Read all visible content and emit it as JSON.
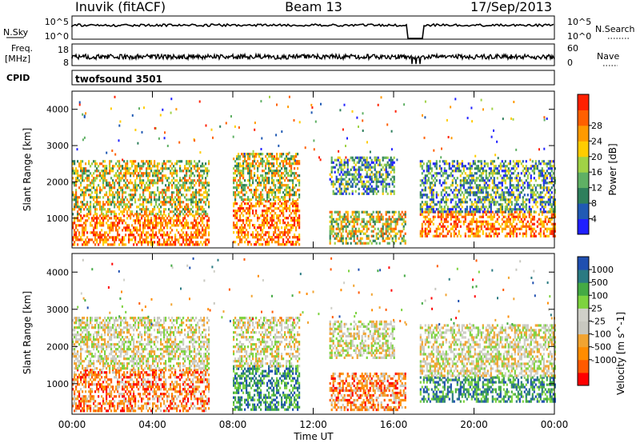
{
  "header": {
    "station": "Inuvik (fitACF)",
    "beam": "Beam 13",
    "date": "17/Sep/2013"
  },
  "housekeeping": {
    "nsky_label": "N.Sky",
    "nsky_ticks": [
      "10^5",
      "10^0"
    ],
    "nsearch_label": "N.Search",
    "nsearch_ticks": [
      "10^5",
      "10^0"
    ],
    "freq_label": "Freq.",
    "freq_unit": "[MHz]",
    "freq_ticks": [
      "18",
      "8"
    ],
    "nave_label": "Nave",
    "nave_ticks": [
      "60",
      "0"
    ],
    "cpid_label": "CPID",
    "cpid_value": "twofsound 3501"
  },
  "colors": {
    "power_scale": [
      "#2020ff",
      "#205ab4",
      "#2e7f5c",
      "#5fb064",
      "#a0d246",
      "#ffcc00",
      "#ff9a00",
      "#ff6000",
      "#ff2000"
    ],
    "velocity_scale": [
      "#ff0000",
      "#ff5a00",
      "#ff8c00",
      "#f2a431",
      "#c8c8c0",
      "#d0d0c8",
      "#7dd33f",
      "#44aa44",
      "#2a7a82",
      "#1f4fb0"
    ]
  },
  "chart_data": [
    {
      "type": "heatmap",
      "name": "power",
      "xlabel": "",
      "ylabel": "Slant Range [km]",
      "xlim": [
        0,
        24
      ],
      "ylim": [
        180,
        4500
      ],
      "y_ticks": [
        "1000",
        "2000",
        "3000",
        "4000"
      ],
      "x_tick_values": [
        0,
        4,
        8,
        12,
        16,
        20,
        24
      ],
      "colorbar": {
        "label": "Power [dB]",
        "ticks": [
          "4",
          "8",
          "12",
          "16",
          "20",
          "24",
          "28"
        ]
      },
      "echo_regions": [
        {
          "t_start": 0.0,
          "t_end": 6.8,
          "range_start": 300,
          "range_end": 1100,
          "level": "high"
        },
        {
          "t_start": 0.0,
          "t_end": 6.8,
          "range_start": 1100,
          "range_end": 2600,
          "level": "medium"
        },
        {
          "t_start": 8.0,
          "t_end": 11.3,
          "range_start": 300,
          "range_end": 1500,
          "level": "high"
        },
        {
          "t_start": 8.0,
          "t_end": 11.3,
          "range_start": 1500,
          "range_end": 2800,
          "level": "medium"
        },
        {
          "t_start": 12.8,
          "t_end": 16.6,
          "range_start": 300,
          "range_end": 1200,
          "level": "medium"
        },
        {
          "t_start": 12.8,
          "t_end": 16.0,
          "range_start": 1700,
          "range_end": 2700,
          "level": "low"
        },
        {
          "t_start": 17.3,
          "t_end": 24.0,
          "range_start": 500,
          "range_end": 1200,
          "level": "high"
        },
        {
          "t_start": 17.3,
          "t_end": 24.0,
          "range_start": 1200,
          "range_end": 2600,
          "level": "low"
        }
      ]
    },
    {
      "type": "heatmap",
      "name": "velocity",
      "xlabel": "Time UT",
      "ylabel": "Slant Range [km]",
      "xlim": [
        0,
        24
      ],
      "ylim": [
        180,
        4500
      ],
      "y_ticks": [
        "1000",
        "2000",
        "3000",
        "4000"
      ],
      "x_ticks": [
        "00:00",
        "04:00",
        "08:00",
        "12:00",
        "16:00",
        "20:00",
        "00:00"
      ],
      "x_tick_values": [
        0,
        4,
        8,
        12,
        16,
        20,
        24
      ],
      "colorbar": {
        "label": "Velocity [m s^-1]",
        "ticks": [
          "1000",
          "500",
          "100",
          "25",
          "-25",
          "-100",
          "-500",
          "-1000"
        ]
      },
      "echo_regions": [
        {
          "t_start": 0.0,
          "t_end": 6.8,
          "range_start": 300,
          "range_end": 1400,
          "level": "negative"
        },
        {
          "t_start": 0.0,
          "t_end": 6.8,
          "range_start": 1400,
          "range_end": 2800,
          "level": "near-zero"
        },
        {
          "t_start": 8.0,
          "t_end": 11.3,
          "range_start": 300,
          "range_end": 1500,
          "level": "positive"
        },
        {
          "t_start": 8.0,
          "t_end": 11.3,
          "range_start": 1500,
          "range_end": 2800,
          "level": "near-zero"
        },
        {
          "t_start": 12.8,
          "t_end": 16.6,
          "range_start": 300,
          "range_end": 1300,
          "level": "negative"
        },
        {
          "t_start": 12.8,
          "t_end": 16.0,
          "range_start": 1700,
          "range_end": 2700,
          "level": "near-zero"
        },
        {
          "t_start": 17.3,
          "t_end": 24.0,
          "range_start": 500,
          "range_end": 1200,
          "level": "positive"
        },
        {
          "t_start": 17.3,
          "t_end": 24.0,
          "range_start": 1200,
          "range_end": 2600,
          "level": "near-zero"
        }
      ]
    }
  ]
}
